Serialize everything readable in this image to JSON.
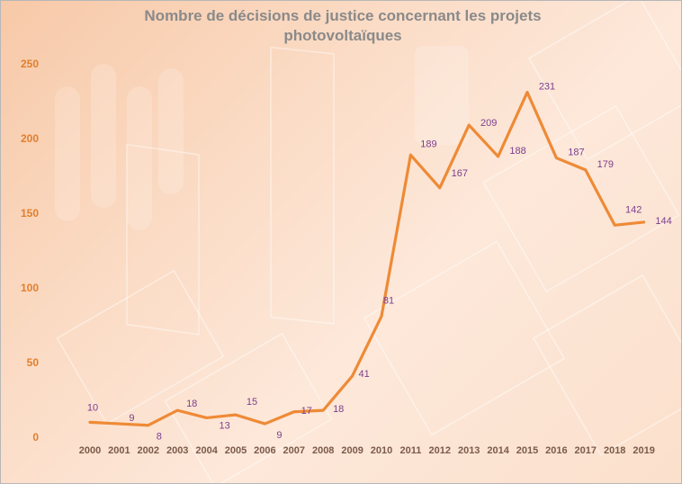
{
  "chart_data": {
    "type": "line",
    "title_lines": [
      "Nombre  de décisions de justice concernant les projets",
      "photovoltaïques"
    ],
    "xlabel": "",
    "ylabel": "",
    "categories": [
      "2000",
      "2001",
      "2002",
      "2003",
      "2004",
      "2005",
      "2006",
      "2007",
      "2008",
      "2009",
      "2010",
      "2011",
      "2012",
      "2013",
      "2014",
      "2015",
      "2016",
      "2017",
      "2018",
      "2019"
    ],
    "series": [
      {
        "values": [
          10,
          9,
          8,
          18,
          13,
          15,
          9,
          17,
          18,
          41,
          81,
          189,
          167,
          209,
          188,
          231,
          187,
          179,
          142,
          144
        ]
      }
    ],
    "ylim": [
      0,
      250
    ],
    "yticks": [
      0,
      50,
      100,
      150,
      200,
      250
    ],
    "grid": false,
    "legend": "none",
    "colors": {
      "line": "#ee8a36",
      "labels": "#7b3e8c",
      "yticks": "#e07f2e"
    }
  }
}
